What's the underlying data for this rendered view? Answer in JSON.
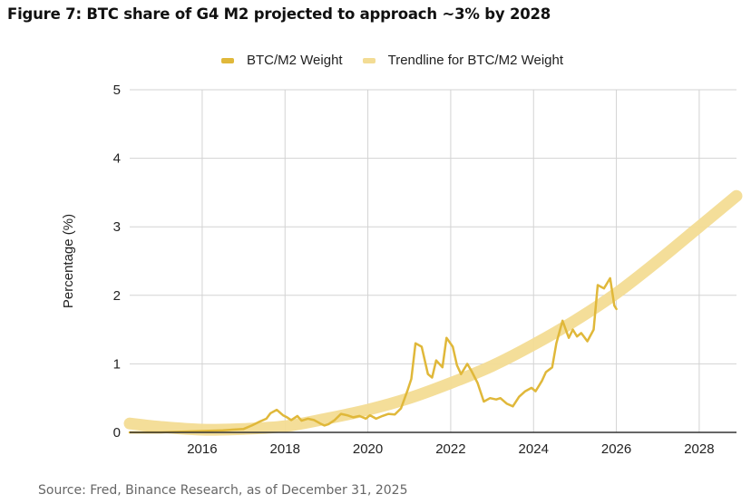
{
  "title": "Figure 7: BTC share of G4 M2 projected to approach ~3% by 2028",
  "source": "Source: Fred, Binance Research, as of December 31, 2025",
  "colors": {
    "series": "#e0b83a",
    "trendline": "#f3dc94",
    "grid": "#d3d3d3",
    "axis": "#333333"
  },
  "legend": [
    {
      "label": "BTC/M2 Weight",
      "color": "#e0b83a"
    },
    {
      "label": "Trendline for BTC/M2 Weight",
      "color": "#f3dc94"
    }
  ],
  "chart_data": {
    "type": "line",
    "title": "Figure 7: BTC share of G4 M2 projected to approach ~3% by 2028",
    "xlabel": "",
    "ylabel": "Percentage (%)",
    "xlim": [
      2014.25,
      2028.9
    ],
    "ylim": [
      0,
      5
    ],
    "xticks": [
      2016,
      2018,
      2020,
      2022,
      2024,
      2026,
      2028
    ],
    "xtick_labels": [
      "2016",
      "2018",
      "2020",
      "2022",
      "2024",
      "2026",
      "2028"
    ],
    "yticks": [
      0,
      1,
      2,
      3,
      4,
      5
    ],
    "ytick_labels": [
      "0",
      "1",
      "2",
      "3",
      "4",
      "5"
    ],
    "grid": true,
    "legend_position": "top-center",
    "series": [
      {
        "name": "BTC/M2 Weight",
        "x": [
          2014.25,
          2015.0,
          2015.5,
          2016.0,
          2016.5,
          2017.0,
          2017.2,
          2017.4,
          2017.55,
          2017.65,
          2017.8,
          2017.95,
          2018.05,
          2018.15,
          2018.3,
          2018.4,
          2018.55,
          2018.7,
          2018.85,
          2018.95,
          2019.05,
          2019.2,
          2019.35,
          2019.5,
          2019.65,
          2019.8,
          2019.95,
          2020.05,
          2020.2,
          2020.35,
          2020.5,
          2020.65,
          2020.8,
          2020.95,
          2021.05,
          2021.15,
          2021.3,
          2021.45,
          2021.55,
          2021.65,
          2021.8,
          2021.9,
          2022.05,
          2022.15,
          2022.25,
          2022.4,
          2022.5,
          2022.65,
          2022.8,
          2022.95,
          2023.1,
          2023.2,
          2023.35,
          2023.5,
          2023.65,
          2023.8,
          2023.95,
          2024.05,
          2024.2,
          2024.3,
          2024.45,
          2024.55,
          2024.7,
          2024.85,
          2024.95,
          2025.05,
          2025.15,
          2025.3,
          2025.45,
          2025.55,
          2025.7,
          2025.85,
          2025.95,
          2026.0
        ],
        "y": [
          0.0,
          0.0,
          0.01,
          0.02,
          0.03,
          0.05,
          0.1,
          0.16,
          0.2,
          0.28,
          0.33,
          0.25,
          0.22,
          0.18,
          0.24,
          0.17,
          0.2,
          0.18,
          0.13,
          0.1,
          0.12,
          0.18,
          0.27,
          0.25,
          0.22,
          0.24,
          0.2,
          0.25,
          0.2,
          0.24,
          0.27,
          0.26,
          0.35,
          0.6,
          0.78,
          1.3,
          1.25,
          0.85,
          0.8,
          1.05,
          0.95,
          1.38,
          1.25,
          0.98,
          0.85,
          1.0,
          0.9,
          0.72,
          0.45,
          0.5,
          0.48,
          0.5,
          0.42,
          0.38,
          0.52,
          0.6,
          0.65,
          0.6,
          0.75,
          0.88,
          0.95,
          1.3,
          1.63,
          1.38,
          1.5,
          1.4,
          1.45,
          1.33,
          1.5,
          2.15,
          2.1,
          2.25,
          1.85,
          1.8
        ],
        "color": "#e0b83a"
      },
      {
        "name": "Trendline for BTC/M2 Weight",
        "type": "polynomial-trend",
        "x": [
          2014.25,
          2015,
          2016,
          2017,
          2018,
          2019,
          2020,
          2021,
          2022,
          2023,
          2024,
          2025,
          2026,
          2027,
          2028,
          2028.9
        ],
        "y": [
          0.13,
          0.08,
          0.04,
          0.05,
          0.09,
          0.2,
          0.33,
          0.5,
          0.72,
          0.97,
          1.28,
          1.63,
          2.03,
          2.5,
          3.0,
          3.45
        ],
        "color": "#f3dc94"
      }
    ]
  }
}
